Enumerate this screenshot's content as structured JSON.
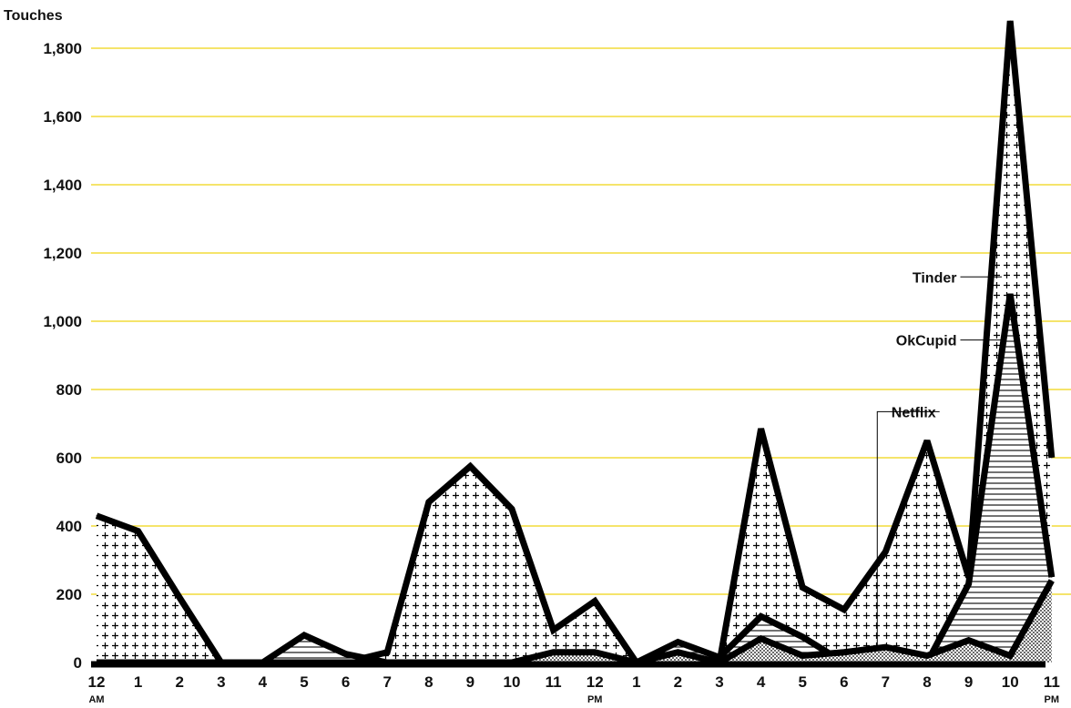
{
  "chart_data": {
    "type": "area",
    "ylabel": "Touches",
    "ylim": [
      0,
      1900
    ],
    "y_ticks": [
      {
        "value": 0,
        "label": "0"
      },
      {
        "value": 200,
        "label": "200"
      },
      {
        "value": 400,
        "label": "400"
      },
      {
        "value": 600,
        "label": "600"
      },
      {
        "value": 800,
        "label": "800"
      },
      {
        "value": 1000,
        "label": "1,000"
      },
      {
        "value": 1200,
        "label": "1,200"
      },
      {
        "value": 1400,
        "label": "1,400"
      },
      {
        "value": 1600,
        "label": "1,600"
      },
      {
        "value": 1800,
        "label": "1,800"
      }
    ],
    "x": [
      0,
      1,
      2,
      3,
      4,
      5,
      6,
      7,
      8,
      9,
      10,
      11,
      12,
      13,
      14,
      15,
      16,
      17,
      18,
      19,
      20,
      21,
      22,
      23
    ],
    "x_ticks": [
      {
        "value": 0,
        "label": "12",
        "sub": "AM"
      },
      {
        "value": 1,
        "label": "1"
      },
      {
        "value": 2,
        "label": "2"
      },
      {
        "value": 3,
        "label": "3"
      },
      {
        "value": 4,
        "label": "4"
      },
      {
        "value": 5,
        "label": "5"
      },
      {
        "value": 6,
        "label": "6"
      },
      {
        "value": 7,
        "label": "7"
      },
      {
        "value": 8,
        "label": "8"
      },
      {
        "value": 9,
        "label": "9"
      },
      {
        "value": 10,
        "label": "10"
      },
      {
        "value": 11,
        "label": "11"
      },
      {
        "value": 12,
        "label": "12",
        "sub": "PM"
      },
      {
        "value": 13,
        "label": "1"
      },
      {
        "value": 14,
        "label": "2"
      },
      {
        "value": 15,
        "label": "3"
      },
      {
        "value": 16,
        "label": "4"
      },
      {
        "value": 17,
        "label": "5"
      },
      {
        "value": 18,
        "label": "6"
      },
      {
        "value": 19,
        "label": "7"
      },
      {
        "value": 20,
        "label": "8"
      },
      {
        "value": 21,
        "label": "9"
      },
      {
        "value": 22,
        "label": "10"
      },
      {
        "value": 23,
        "label": "11",
        "sub": "PM"
      }
    ],
    "grid": true,
    "series": [
      {
        "name": "Tinder",
        "pattern": "plus",
        "label_x": 20.8,
        "label_y": 1130,
        "values": [
          430,
          385,
          190,
          0,
          0,
          0,
          0,
          30,
          470,
          575,
          450,
          95,
          180,
          0,
          0,
          0,
          685,
          220,
          155,
          325,
          650,
          250,
          1880,
          600
        ]
      },
      {
        "name": "OkCupid",
        "pattern": "hlines",
        "label_x": 20.8,
        "label_y": 945,
        "values": [
          0,
          0,
          0,
          0,
          0,
          80,
          25,
          0,
          0,
          0,
          0,
          0,
          0,
          0,
          60,
          15,
          135,
          75,
          0,
          0,
          0,
          230,
          1080,
          250
        ]
      },
      {
        "name": "Netflix",
        "pattern": "dots",
        "label_x": 20.3,
        "label_y": 735,
        "values": [
          0,
          0,
          0,
          0,
          0,
          0,
          0,
          0,
          0,
          0,
          0,
          30,
          30,
          0,
          30,
          0,
          70,
          20,
          30,
          45,
          20,
          65,
          20,
          240
        ]
      }
    ]
  }
}
